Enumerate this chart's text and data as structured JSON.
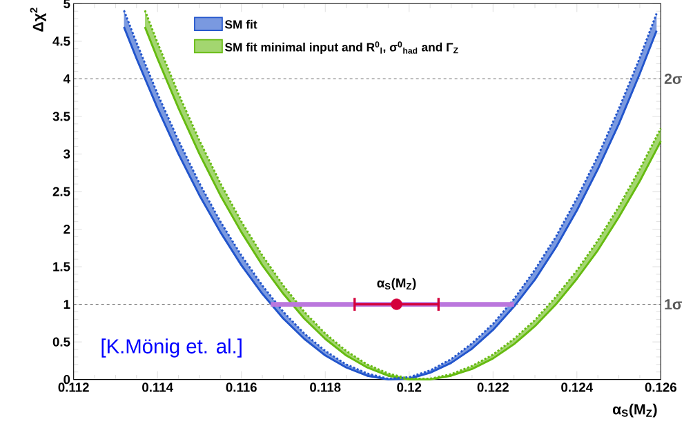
{
  "chart_data": {
    "type": "line",
    "xlabel": "α$_{S}$(M$_{Z}$)",
    "ylabel": "Δχ$^{2}$",
    "xlim": [
      0.112,
      0.126
    ],
    "ylim": [
      0,
      5
    ],
    "xticks": [
      0.112,
      0.114,
      0.116,
      0.118,
      0.12,
      0.122,
      0.124,
      0.126
    ],
    "yticks": [
      0,
      0.5,
      1,
      1.5,
      2,
      2.5,
      3,
      3.5,
      4,
      4.5,
      5
    ],
    "legend": "top left",
    "line_style": "solid",
    "series": [
      {
        "name": "SM fit",
        "color": "#2255cc",
        "x": [
          0.1132,
          0.1135,
          0.114,
          0.1145,
          0.115,
          0.1155,
          0.116,
          0.1165,
          0.117,
          0.1175,
          0.118,
          0.1185,
          0.119,
          0.1195,
          0.12,
          0.1205,
          0.121,
          0.1215,
          0.122,
          0.1225,
          0.123,
          0.1235,
          0.124,
          0.1245,
          0.125,
          0.1255,
          0.1259
        ],
        "values": [
          4.69,
          4.27,
          3.61,
          3.0,
          2.45,
          1.96,
          1.52,
          1.14,
          0.81,
          0.54,
          0.32,
          0.16,
          0.05,
          0.0,
          0.01,
          0.09,
          0.22,
          0.41,
          0.66,
          0.97,
          1.33,
          1.76,
          2.25,
          2.8,
          3.4,
          4.07,
          4.64
        ],
        "lower": [
          4.69,
          4.27,
          3.61,
          3.0,
          2.45,
          1.96,
          1.52,
          1.14,
          0.81,
          0.54,
          0.32,
          0.16,
          0.05,
          0.0,
          0.01,
          0.09,
          0.22,
          0.41,
          0.66,
          0.97,
          1.33,
          1.76,
          2.25,
          2.8,
          3.4,
          4.07,
          4.64
        ],
        "upper": [
          4.91,
          4.48,
          3.8,
          3.18,
          2.61,
          2.1,
          1.65,
          1.25,
          0.9,
          0.61,
          0.38,
          0.2,
          0.08,
          0.01,
          0.03,
          0.12,
          0.27,
          0.48,
          0.74,
          1.07,
          1.46,
          1.9,
          2.41,
          2.97,
          3.6,
          4.28,
          4.87
        ]
      },
      {
        "name": "SM fit minimal input and R$^{0}$$_{l}$, σ$^{0}$$_{had}$ and Γ$_{Z}$",
        "color": "#66bb11",
        "x": [
          0.1137,
          0.114,
          0.1145,
          0.115,
          0.1155,
          0.116,
          0.1165,
          0.117,
          0.1175,
          0.118,
          0.1185,
          0.119,
          0.1195,
          0.12,
          0.1205,
          0.121,
          0.1215,
          0.122,
          0.1225,
          0.123,
          0.1235,
          0.124,
          0.1245,
          0.125,
          0.1255,
          0.126
        ],
        "values": [
          4.69,
          4.27,
          3.61,
          3.0,
          2.45,
          1.96,
          1.52,
          1.14,
          0.81,
          0.54,
          0.32,
          0.16,
          0.05,
          0.0,
          0.0,
          0.05,
          0.14,
          0.28,
          0.47,
          0.71,
          1.0,
          1.34,
          1.72,
          2.16,
          2.64,
          3.17
        ],
        "lower": [
          4.69,
          4.27,
          3.61,
          3.0,
          2.45,
          1.96,
          1.52,
          1.14,
          0.81,
          0.54,
          0.32,
          0.16,
          0.05,
          0.0,
          0.0,
          0.05,
          0.14,
          0.28,
          0.47,
          0.71,
          1.0,
          1.34,
          1.72,
          2.16,
          2.64,
          3.17
        ],
        "upper": [
          4.91,
          4.48,
          3.8,
          3.18,
          2.61,
          2.1,
          1.65,
          1.25,
          0.9,
          0.61,
          0.38,
          0.2,
          0.08,
          0.01,
          0.01,
          0.07,
          0.18,
          0.33,
          0.54,
          0.79,
          1.1,
          1.45,
          1.85,
          2.3,
          2.8,
          3.34
        ]
      },
      {
        "line_style": "dotted",
        "color": "#2255cc",
        "x": [
          0.1132,
          0.1135,
          0.114,
          0.1145,
          0.115,
          0.1155,
          0.116,
          0.1165,
          0.117,
          0.1175,
          0.118,
          0.1185,
          0.119,
          0.1195,
          0.12,
          0.1205,
          0.121,
          0.1215,
          0.122,
          0.1225,
          0.123,
          0.1235,
          0.124,
          0.1245,
          0.125,
          0.1255,
          0.1259
        ],
        "values": [
          4.91,
          4.48,
          3.8,
          3.18,
          2.61,
          2.1,
          1.65,
          1.25,
          0.9,
          0.61,
          0.38,
          0.2,
          0.08,
          0.01,
          0.03,
          0.12,
          0.27,
          0.48,
          0.74,
          1.07,
          1.46,
          1.9,
          2.41,
          2.97,
          3.6,
          4.28,
          4.87
        ]
      },
      {
        "line_style": "dotted",
        "color": "#66bb11",
        "x": [
          0.1137,
          0.114,
          0.1145,
          0.115,
          0.1155,
          0.116,
          0.1165,
          0.117,
          0.1175,
          0.118,
          0.1185,
          0.119,
          0.1195,
          0.12,
          0.1205,
          0.121,
          0.1215,
          0.122,
          0.1225,
          0.123,
          0.1235,
          0.124,
          0.1245,
          0.125,
          0.1255,
          0.126
        ],
        "values": [
          4.91,
          4.48,
          3.8,
          3.18,
          2.61,
          2.1,
          1.65,
          1.25,
          0.9,
          0.61,
          0.38,
          0.2,
          0.08,
          0.01,
          0.01,
          0.07,
          0.18,
          0.33,
          0.54,
          0.79,
          1.1,
          1.45,
          1.85,
          2.3,
          2.8,
          3.34
        ]
      },
      {
        "color": "#bb77dd",
        "x": [
          0.1167,
          0.1225
        ],
        "values": [
          1,
          1
        ]
      },
      {
        "type": "scatter",
        "color": "#d4003c",
        "marker": "circle",
        "x": [
          0.1197
        ],
        "values": [
          1
        ],
        "xerrors": [
          [
            0.1187,
            0.1207
          ]
        ]
      }
    ],
    "ref_lines": [
      {
        "axis": "y",
        "value": 1,
        "label": "1σ",
        "line_style": "dashed"
      },
      {
        "axis": "y",
        "value": 4,
        "label": "2σ",
        "line_style": "dashed"
      }
    ],
    "annotations": [
      {
        "text": "α$_{S}$(M$_{Z}$)",
        "x": 0.1197,
        "y": 1
      },
      "[K.Mönig et. al.]"
    ]
  }
}
